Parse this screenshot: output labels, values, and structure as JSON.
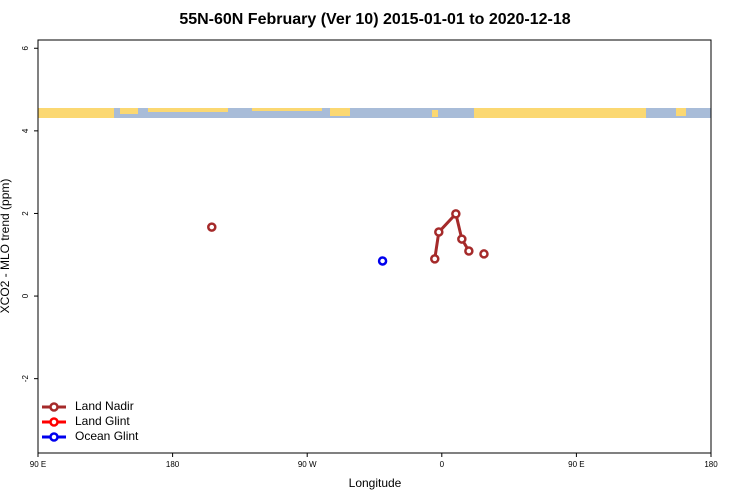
{
  "chart_data": {
    "type": "line",
    "title": "55N-60N February (Ver 10)   2015-01-01 to 2020-12-18",
    "x_label": "Longitude",
    "y_label": "XCO2 - MLO trend (ppm)",
    "xlim": [
      90,
      540
    ],
    "xticks": [
      {
        "value": 90,
        "label": "90 E"
      },
      {
        "value": 180,
        "label": "180"
      },
      {
        "value": 270,
        "label": "90 W"
      },
      {
        "value": 360,
        "label": "0"
      },
      {
        "value": 450,
        "label": "90 E"
      },
      {
        "value": 540,
        "label": "180"
      }
    ],
    "ylim": [
      -3.8,
      6.2
    ],
    "yticks": [
      -2,
      0,
      2,
      4,
      6
    ],
    "legend": "bottom-left",
    "series": [
      {
        "name": "Land Nadir",
        "color": "#a52a2a",
        "x": [
          206.2,
          null,
          355.3,
          358.0,
          369.4,
          373.4,
          378.1,
          null,
          388.2
        ],
        "values": [
          1.67,
          null,
          0.9,
          1.55,
          1.99,
          1.38,
          1.09,
          null,
          1.02
        ]
      },
      {
        "name": "Land Glint",
        "color": "#ff0000",
        "x": [],
        "values": []
      },
      {
        "name": "Ocean Glint",
        "color": "#0000ee",
        "x": [
          320.4
        ],
        "values": [
          0.85
        ]
      }
    ]
  }
}
